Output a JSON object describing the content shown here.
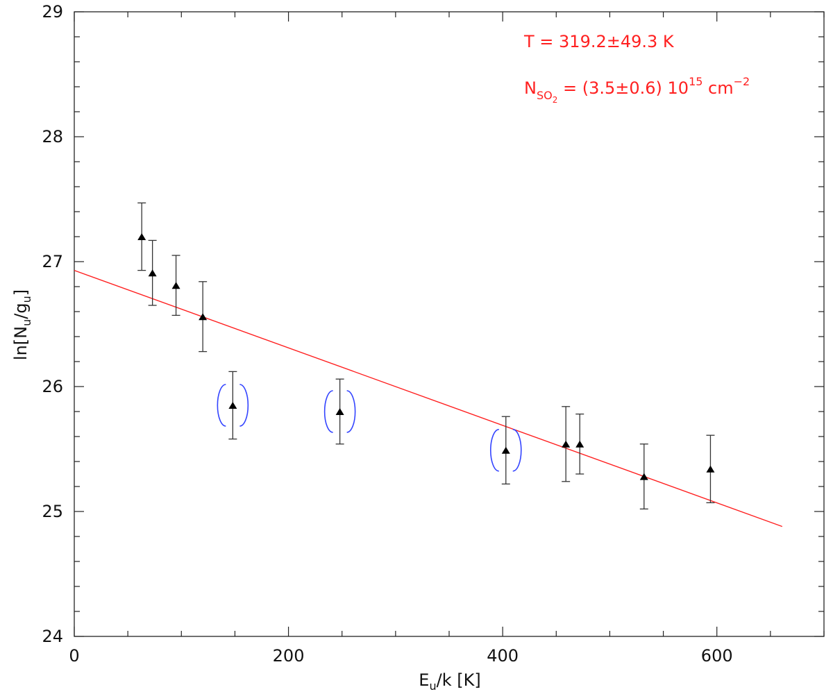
{
  "chart_data": {
    "type": "scatter",
    "xlabel": "E_u/k [K]",
    "ylabel": "ln[N_u/g_u]",
    "xlim": [
      0,
      700
    ],
    "ylim": [
      24,
      29
    ],
    "x_ticks": [
      0,
      200,
      400,
      600
    ],
    "y_ticks": [
      24,
      25,
      26,
      27,
      28,
      29
    ],
    "x_tick_labels": [
      "0",
      "200",
      "400",
      "600"
    ],
    "y_tick_labels": [
      "24",
      "25",
      "26",
      "27",
      "28",
      "29"
    ],
    "grid": false,
    "series": [
      {
        "marker": "triangle",
        "color": "#000000",
        "points": [
          {
            "x": 63,
            "y": 27.2,
            "err": 0.27,
            "bracketed": false
          },
          {
            "x": 73,
            "y": 26.91,
            "err": 0.26,
            "bracketed": false
          },
          {
            "x": 95,
            "y": 26.81,
            "err": 0.24,
            "bracketed": false
          },
          {
            "x": 120,
            "y": 26.56,
            "err": 0.28,
            "bracketed": false
          },
          {
            "x": 148,
            "y": 25.85,
            "err": 0.27,
            "bracketed": true
          },
          {
            "x": 248,
            "y": 25.8,
            "err": 0.26,
            "bracketed": true
          },
          {
            "x": 403,
            "y": 25.49,
            "err": 0.27,
            "bracketed": true
          },
          {
            "x": 459,
            "y": 25.54,
            "err": 0.3,
            "bracketed": false
          },
          {
            "x": 472,
            "y": 25.54,
            "err": 0.24,
            "bracketed": false
          },
          {
            "x": 532,
            "y": 25.28,
            "err": 0.26,
            "bracketed": false
          },
          {
            "x": 594,
            "y": 25.34,
            "err": 0.27,
            "bracketed": false
          }
        ]
      }
    ],
    "fit_line": {
      "color": "#ff2020",
      "x": [
        0,
        661
      ],
      "y": [
        26.93,
        24.88
      ]
    },
    "bracket_color": "#3344ff",
    "annotations": {
      "temperature": "T = 319.2±49.3 K",
      "column_prefix": "N",
      "column_sub": "SO",
      "column_sub2": "2",
      "column_value": " = (3.5±0.6) 10",
      "column_exp": "15",
      "column_unit": " cm",
      "column_unit_exp": "−2"
    },
    "labels": {
      "x_main": "E",
      "x_sub": "u",
      "x_rest": "/k [K]",
      "y_pre": "ln[N",
      "y_sub1": "u",
      "y_mid": "/g",
      "y_sub2": "u",
      "y_post": "]"
    }
  }
}
